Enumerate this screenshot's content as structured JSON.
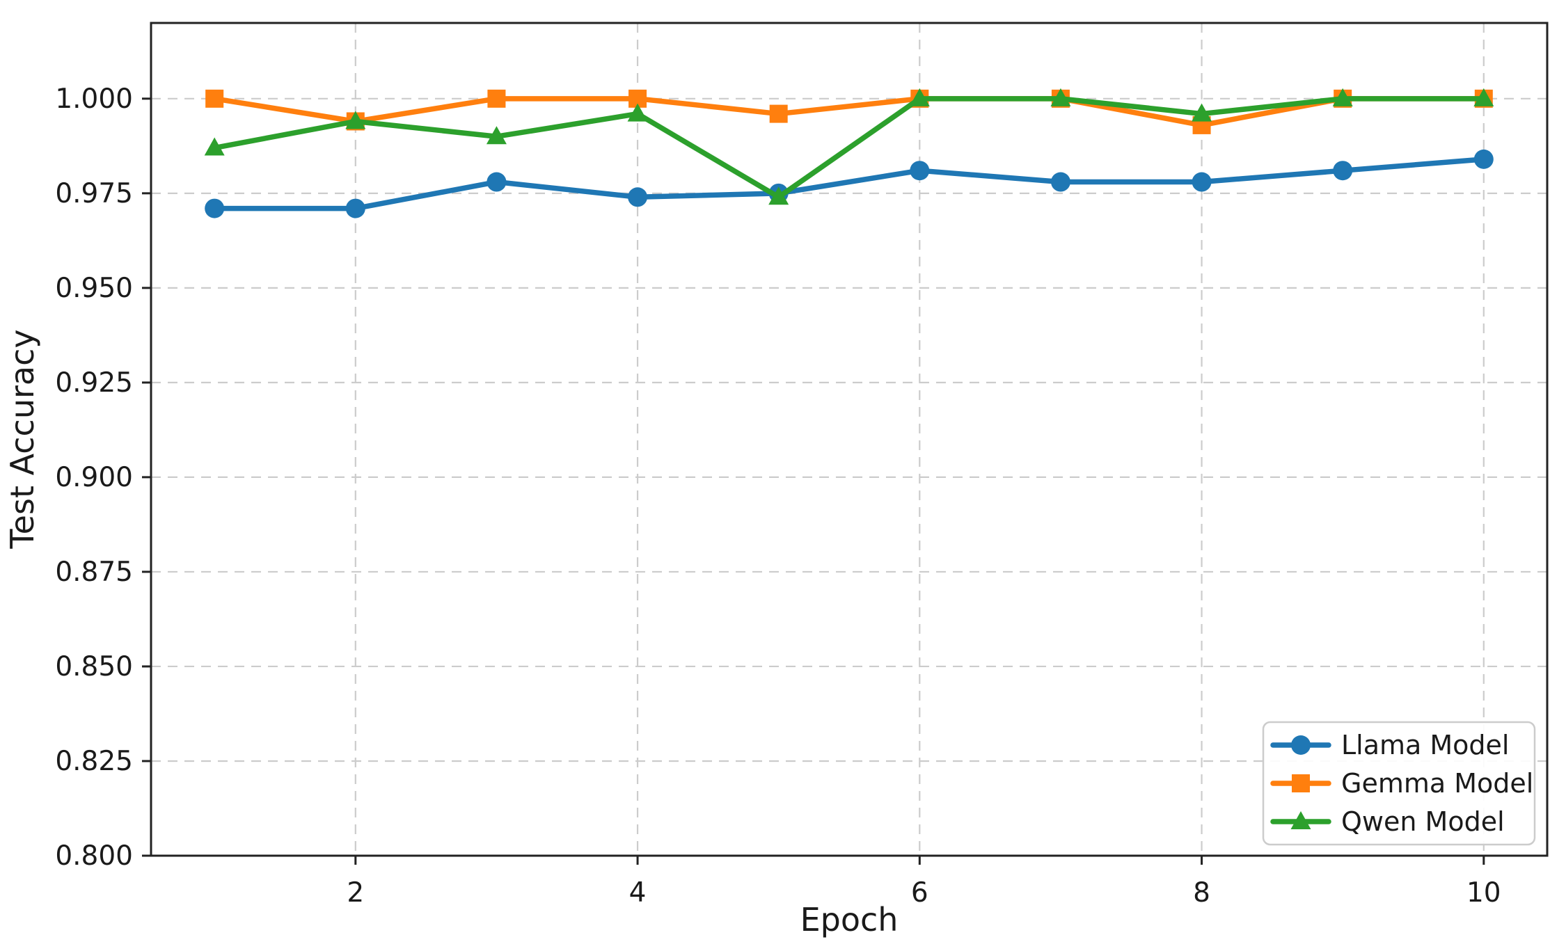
{
  "colors": {
    "background": "#ffffff",
    "grid": "#cccccc",
    "axis": "#222222",
    "text": "#1a1a1a",
    "legend_border": "#cccccc"
  },
  "chart_data": {
    "type": "line",
    "title": "",
    "xlabel": "Epoch",
    "ylabel": "Test Accuracy",
    "x": [
      1,
      2,
      3,
      4,
      5,
      6,
      7,
      8,
      9,
      10
    ],
    "series": [
      {
        "name": "Llama Model",
        "marker": "circle",
        "color": "#1f77b4",
        "values": [
          0.971,
          0.971,
          0.978,
          0.974,
          0.975,
          0.981,
          0.978,
          0.978,
          0.981,
          0.984
        ]
      },
      {
        "name": "Gemma Model",
        "marker": "square",
        "color": "#ff7f0e",
        "values": [
          1.0,
          0.994,
          1.0,
          1.0,
          0.996,
          1.0,
          1.0,
          0.993,
          1.0,
          1.0
        ]
      },
      {
        "name": "Qwen Model",
        "marker": "triangle",
        "color": "#2ca02c",
        "values": [
          0.987,
          0.994,
          0.99,
          0.996,
          0.974,
          1.0,
          1.0,
          0.996,
          1.0,
          1.0
        ]
      }
    ],
    "xticks": [
      2,
      4,
      6,
      8,
      10
    ],
    "xtick_labels": [
      "2",
      "4",
      "6",
      "8",
      "10"
    ],
    "yticks": [
      0.8,
      0.825,
      0.85,
      0.875,
      0.9,
      0.925,
      0.95,
      0.975,
      1.0
    ],
    "ytick_labels": [
      "0.800",
      "0.825",
      "0.850",
      "0.875",
      "0.900",
      "0.925",
      "0.950",
      "0.975",
      "1.000"
    ],
    "xlim": [
      0.55,
      10.45
    ],
    "ylim": [
      0.8,
      1.02
    ],
    "grid": true,
    "grid_style": "dashed",
    "legend": {
      "position": "lower-right",
      "entries": [
        "Llama Model",
        "Gemma Model",
        "Qwen Model"
      ]
    }
  }
}
